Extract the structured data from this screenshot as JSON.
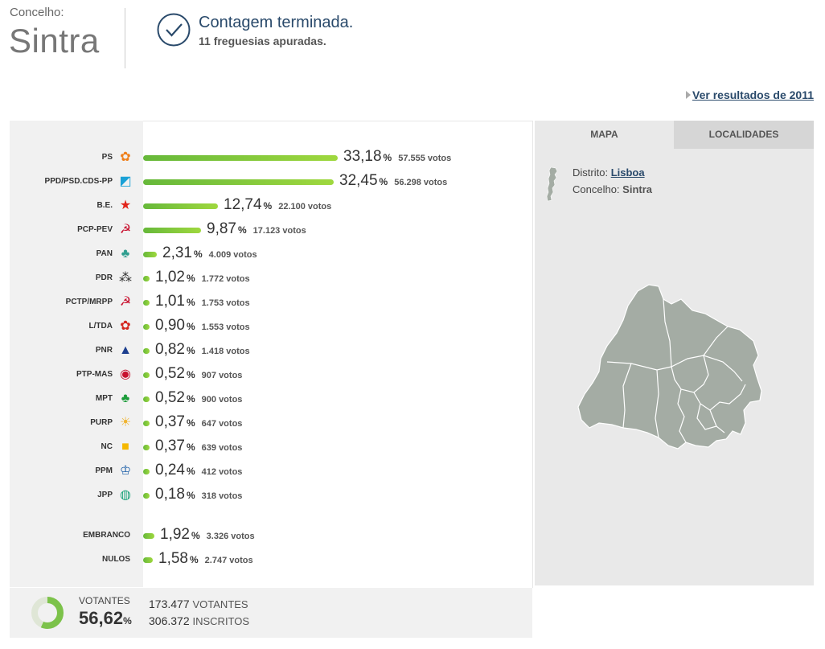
{
  "header": {
    "label": "Concelho:",
    "name": "Sintra",
    "status_title": "Contagem terminada.",
    "status_sub": "11 freguesias apuradas.",
    "prev_link": "Ver resultados de 2011"
  },
  "results": [
    {
      "party": "PS",
      "pct": "33,18",
      "votes": "57.555 votos",
      "bar_pct": 100,
      "icon": "ps-rose-icon",
      "color": "#ef7f1a"
    },
    {
      "party": "PPD/PSD.CDS-PP",
      "pct": "32,45",
      "votes": "56.298 votos",
      "bar_pct": 97.8,
      "icon": "psd-cds-icon",
      "color": "#1aa1d6"
    },
    {
      "party": "B.E.",
      "pct": "12,74",
      "votes": "22.100 votos",
      "bar_pct": 38.4,
      "icon": "be-star-icon",
      "color": "#e2231a"
    },
    {
      "party": "PCP-PEV",
      "pct": "9,87",
      "votes": "17.123 votos",
      "bar_pct": 29.7,
      "icon": "pcp-pev-icon",
      "color": "#c8102e"
    },
    {
      "party": "PAN",
      "pct": "2,31",
      "votes": "4.009 votos",
      "bar_pct": 7.0,
      "icon": "pan-tree-icon",
      "color": "#2f9e8f"
    },
    {
      "party": "PDR",
      "pct": "1,02",
      "votes": "1.772 votos",
      "bar_pct": 3.1,
      "icon": "pdr-stars-icon",
      "color": "#333333"
    },
    {
      "party": "PCTP/MRPP",
      "pct": "1,01",
      "votes": "1.753 votos",
      "bar_pct": 3.0,
      "icon": "mrpp-icon",
      "color": "#c8102e"
    },
    {
      "party": "L/TDA",
      "pct": "0,90",
      "votes": "1.553 votos",
      "bar_pct": 2.7,
      "icon": "livre-poppy-icon",
      "color": "#d4261e"
    },
    {
      "party": "PNR",
      "pct": "0,82",
      "votes": "1.418 votos",
      "bar_pct": 2.5,
      "icon": "pnr-flame-icon",
      "color": "#1d3f8f"
    },
    {
      "party": "PTP-MAS",
      "pct": "0,52",
      "votes": "907 votos",
      "bar_pct": 1.6,
      "icon": "ptp-mas-icon",
      "color": "#c8102e"
    },
    {
      "party": "MPT",
      "pct": "0,52",
      "votes": "900 votos",
      "bar_pct": 1.6,
      "icon": "mpt-clover-icon",
      "color": "#1c9c3a"
    },
    {
      "party": "PURP",
      "pct": "0,37",
      "votes": "647 votos",
      "bar_pct": 1.1,
      "icon": "purp-sun-icon",
      "color": "#f0b432"
    },
    {
      "party": "NC",
      "pct": "0,37",
      "votes": "639 votos",
      "bar_pct": 1.1,
      "icon": "nc-nos-icon",
      "color": "#f5b800"
    },
    {
      "party": "PPM",
      "pct": "0,24",
      "votes": "412 votos",
      "bar_pct": 0.7,
      "icon": "ppm-crown-icon",
      "color": "#1d5fa8"
    },
    {
      "party": "JPP",
      "pct": "0,18",
      "votes": "318 votos",
      "bar_pct": 0.5,
      "icon": "jpp-icon",
      "color": "#1aa37a"
    }
  ],
  "others": [
    {
      "label": "EMBRANCO",
      "pct": "1,92",
      "votes": "3.326 votos",
      "bar_pct": 5.8
    },
    {
      "label": "NULOS",
      "pct": "1,58",
      "votes": "2.747 votos",
      "bar_pct": 4.8
    }
  ],
  "turnout": {
    "label": "VOTANTES",
    "pct": "56,62",
    "pct_value": 56.62,
    "voters": "173.477",
    "voters_label": "VOTANTES",
    "registered": "306.372",
    "registered_label": "INSCRITOS"
  },
  "map_panel": {
    "tab_map": "MAPA",
    "tab_localidades": "LOCALIDADES",
    "distrito_label": "Distrito:",
    "distrito_value": "Lisboa",
    "concelho_label": "Concelho:",
    "concelho_value": "Sintra"
  },
  "colors": {
    "bar_start": "#66b83a",
    "bar_end": "#9fd83e",
    "accent": "#2a4a6b",
    "map_fill": "#a4aca4"
  }
}
